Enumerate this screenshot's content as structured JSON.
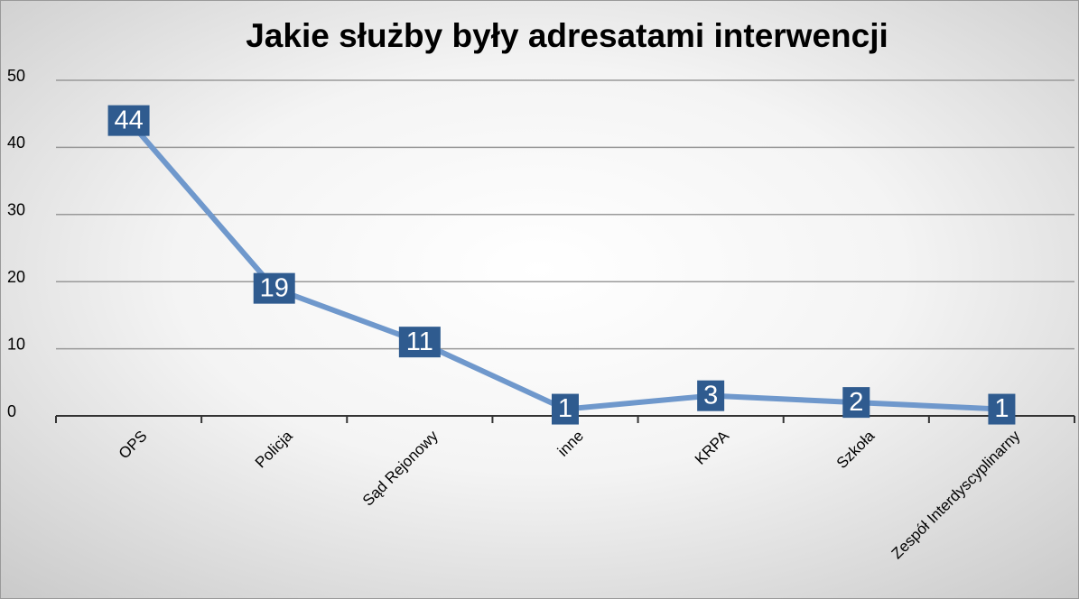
{
  "chart_data": {
    "type": "line",
    "title": "Jakie służby były adresatami interwencji",
    "categories": [
      "OPS",
      "Policja",
      "Sąd Rejonowy",
      "inne",
      "KRPA",
      "Szkoła",
      "Zespół Interdyscyplinarny"
    ],
    "values": [
      44,
      19,
      11,
      1,
      3,
      2,
      1
    ],
    "color": "#6f98cc",
    "label_color": "#2f5b8f",
    "ylim": [
      0,
      50
    ],
    "yticks": [
      0,
      10,
      20,
      30,
      40,
      50
    ],
    "grid": true
  }
}
